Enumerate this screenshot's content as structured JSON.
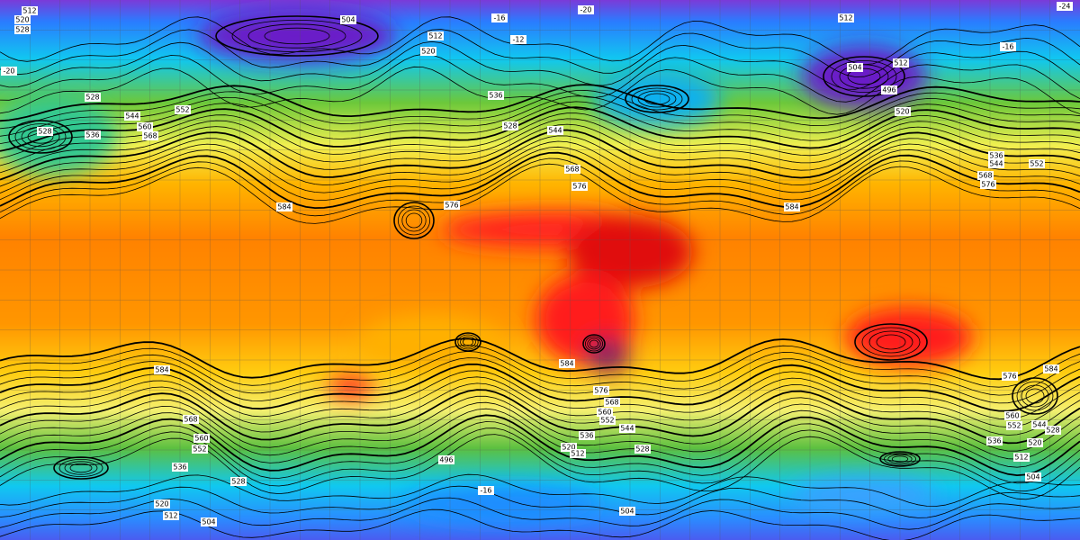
{
  "contour_labels": [
    "512",
    "520",
    "528",
    "504",
    "512",
    "520",
    "536",
    "528",
    "544",
    "568",
    "576",
    "584",
    "576",
    "584",
    "568",
    "576",
    "552",
    "544",
    "536",
    "504",
    "496",
    "512",
    "520",
    "512",
    "528",
    "544",
    "552",
    "560",
    "568",
    "528",
    "536",
    "584",
    "568",
    "560",
    "552",
    "536",
    "528",
    "520",
    "512",
    "504",
    "584",
    "576",
    "568",
    "560",
    "552",
    "544",
    "536",
    "528",
    "520",
    "512",
    "496",
    "504",
    "584",
    "576",
    "560",
    "552",
    "544",
    "536",
    "520",
    "512",
    "504",
    "528",
    "-24",
    "-20",
    "-16",
    "-12",
    "-16",
    "-20",
    "-16"
  ]
}
